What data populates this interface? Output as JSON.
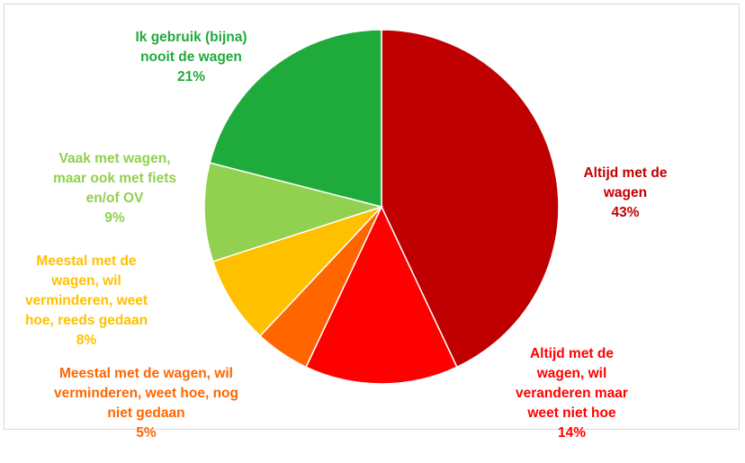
{
  "chart_data": {
    "type": "pie",
    "slices": [
      {
        "label": "Altijd met de\nwagen",
        "percent_label": "43%",
        "value": 43,
        "color": "#c00000"
      },
      {
        "label": "Altijd met de\nwagen, wil\nveranderen maar\nweet niet hoe",
        "percent_label": "14%",
        "value": 14,
        "color": "#ff0000"
      },
      {
        "label": "Meestal met de wagen, wil\nverminderen, weet hoe, nog\nniet gedaan",
        "percent_label": "5%",
        "value": 5,
        "color": "#ff6600"
      },
      {
        "label": "Meestal met de\nwagen, wil\nverminderen, weet\nhoe, reeds gedaan",
        "percent_label": "8%",
        "value": 8,
        "color": "#ffc000"
      },
      {
        "label": "Vaak met wagen,\nmaar ook met fiets\nen/of OV",
        "percent_label": "9%",
        "value": 9,
        "color": "#92d050"
      },
      {
        "label": "Ik gebruik (bijna)\nnooit de wagen",
        "percent_label": "21%",
        "value": 21,
        "color": "#1fab3c"
      }
    ],
    "start_angle": "top",
    "direction": "clockwise",
    "legend": "none"
  }
}
